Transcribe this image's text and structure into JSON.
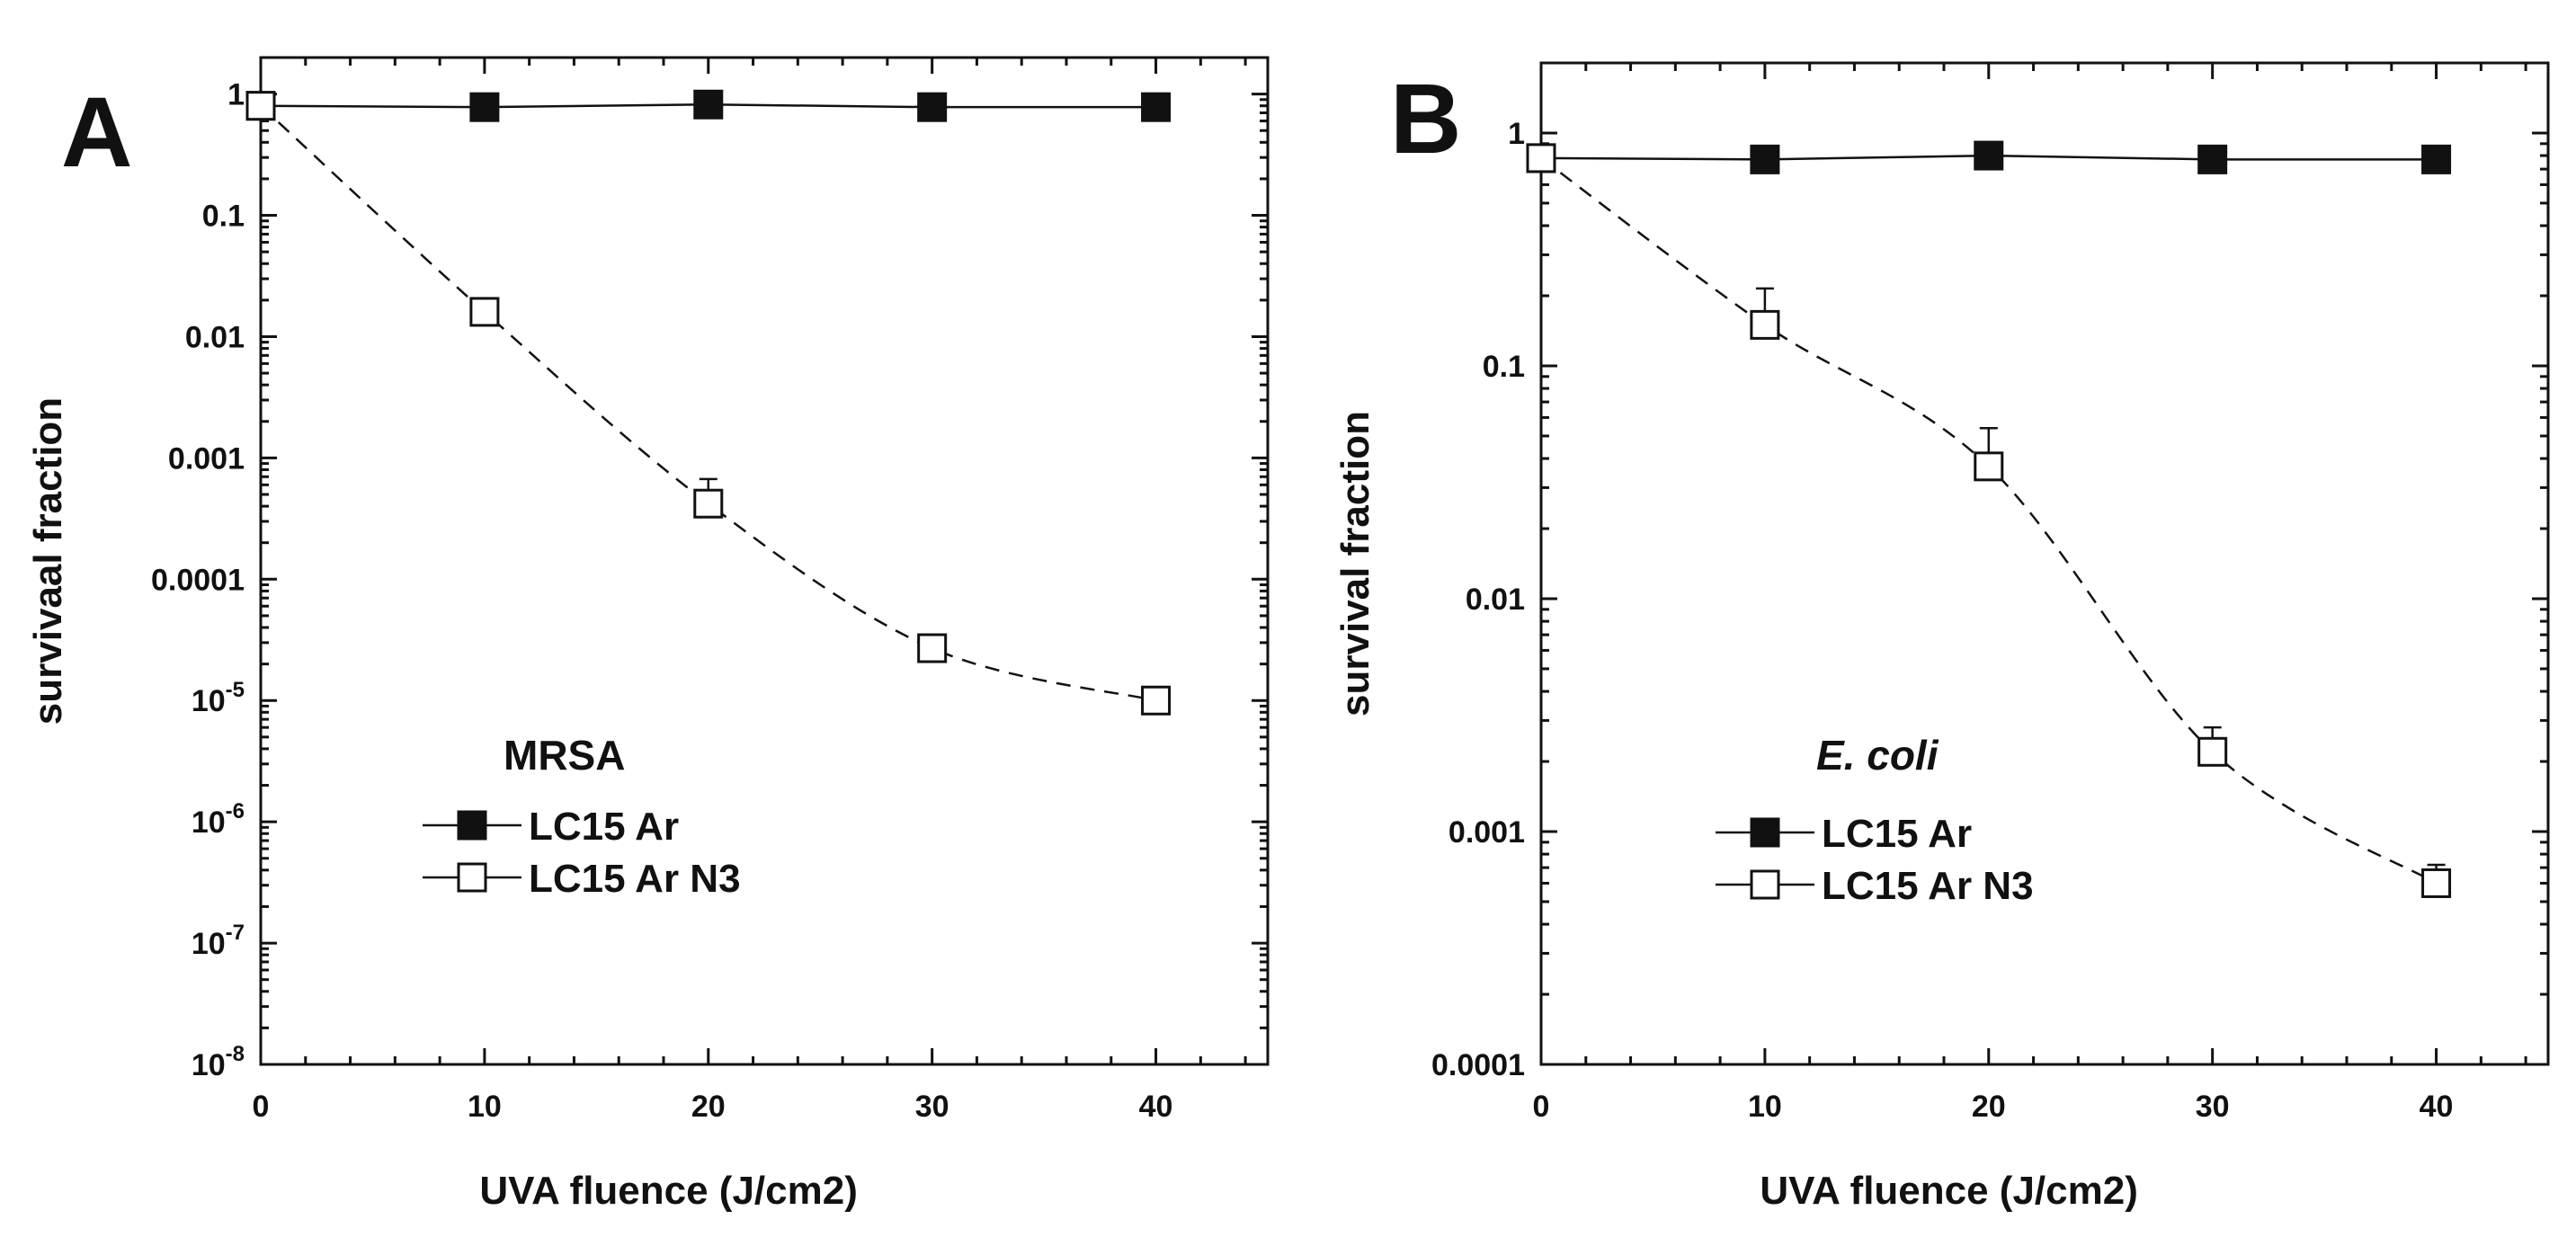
{
  "chart_data": [
    {
      "type": "line",
      "panel_label": "A",
      "title": "MRSA",
      "title_italic": false,
      "xlabel": "UVA fluence (J/cm2)",
      "ylabel": "survivaal fraction",
      "xlim": [
        0,
        45
      ],
      "x_ticks": [
        0,
        10,
        20,
        30,
        40
      ],
      "x_tick_labels": [
        "0",
        "10",
        "20",
        "30",
        "40"
      ],
      "y_scale": "log",
      "ylim": [
        1e-08,
        2
      ],
      "y_ticks": [
        1,
        0.1,
        0.01,
        0.001,
        0.0001,
        1e-05,
        1e-06,
        1e-07,
        1e-08
      ],
      "y_tick_labels": [
        {
          "base": "1",
          "exp": ""
        },
        {
          "base": "0.1",
          "exp": ""
        },
        {
          "base": "0.01",
          "exp": ""
        },
        {
          "base": "0.001",
          "exp": ""
        },
        {
          "base": "0.0001",
          "exp": ""
        },
        {
          "base": "10",
          "exp": "-5"
        },
        {
          "base": "10",
          "exp": "-6"
        },
        {
          "base": "10",
          "exp": "-7"
        },
        {
          "base": "10",
          "exp": "-8"
        }
      ],
      "series": [
        {
          "name": "LC15 Ar",
          "marker": "filled-square",
          "line": "solid",
          "x": [
            0,
            10,
            20,
            30,
            40
          ],
          "y": [
            0.8,
            0.78,
            0.82,
            0.78,
            0.78
          ],
          "err": [
            0,
            0,
            0,
            0,
            0
          ]
        },
        {
          "name": "LC15 Ar N3",
          "marker": "open-square",
          "line": "dashed",
          "x": [
            0,
            10,
            20,
            30,
            40
          ],
          "y": [
            0.8,
            0.016,
            0.00042,
            2.7e-05,
            1e-05
          ],
          "err": [
            0,
            0.004,
            0.00025,
            6e-06,
            1.5e-06
          ]
        }
      ],
      "legend": {
        "title": "MRSA",
        "entries": [
          "LC15 Ar",
          "LC15 Ar N3"
        ],
        "location": "lower-center"
      }
    },
    {
      "type": "line",
      "panel_label": "B",
      "title": "E. coli",
      "title_italic": true,
      "xlabel": "UVA fluence (J/cm2)",
      "ylabel": "survival fraction",
      "xlim": [
        0,
        45
      ],
      "x_ticks": [
        0,
        10,
        20,
        30,
        40
      ],
      "x_tick_labels": [
        "0",
        "10",
        "20",
        "30",
        "40"
      ],
      "y_scale": "log",
      "ylim": [
        0.0001,
        2
      ],
      "y_ticks": [
        1,
        0.1,
        0.01,
        0.001,
        0.0001
      ],
      "y_tick_labels": [
        {
          "base": "1",
          "exp": ""
        },
        {
          "base": "0.1",
          "exp": ""
        },
        {
          "base": "0.01",
          "exp": ""
        },
        {
          "base": "0.001",
          "exp": ""
        },
        {
          "base": "0.0001",
          "exp": ""
        }
      ],
      "series": [
        {
          "name": "LC15 Ar",
          "marker": "filled-square",
          "line": "solid",
          "x": [
            0,
            10,
            20,
            30,
            40
          ],
          "y": [
            0.78,
            0.77,
            0.8,
            0.77,
            0.77
          ],
          "err": [
            0,
            0,
            0,
            0,
            0
          ]
        },
        {
          "name": "LC15 Ar N3",
          "marker": "open-square",
          "line": "dashed",
          "x": [
            0,
            10,
            20,
            30,
            40
          ],
          "y": [
            0.78,
            0.15,
            0.037,
            0.0022,
            0.0006
          ],
          "err": [
            0,
            0.065,
            0.017,
            0.0006,
            0.00012
          ]
        }
      ],
      "legend": {
        "title": "E. coli",
        "entries": [
          "LC15 Ar",
          "LC15 Ar N3"
        ],
        "location": "lower-center"
      }
    }
  ]
}
